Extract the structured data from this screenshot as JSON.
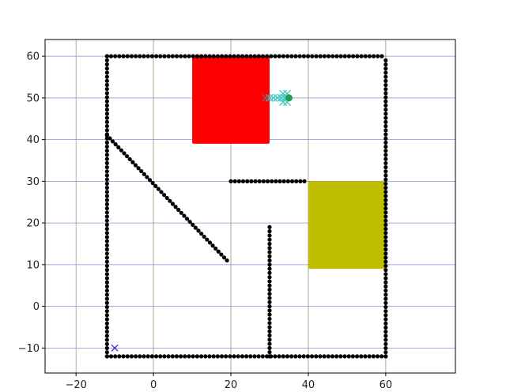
{
  "chart_data": {
    "type": "scatter",
    "title": "",
    "xlabel": "",
    "ylabel": "",
    "xlim": [
      -28,
      78
    ],
    "ylim": [
      -16,
      64
    ],
    "grid": true,
    "x_ticks": [
      -20,
      0,
      20,
      40,
      60
    ],
    "y_ticks": [
      -10,
      0,
      10,
      20,
      30,
      40,
      50,
      60
    ],
    "x_tick_labels": [
      "−20",
      "0",
      "20",
      "40",
      "60"
    ],
    "y_tick_labels": [
      "−10",
      "0",
      "10",
      "20",
      "30",
      "40",
      "50",
      "60"
    ],
    "colors": {
      "grid_x": "#9a9a70",
      "grid_y": "#8c8cd8",
      "walls": "#000000",
      "red_region": "#ff0000",
      "yellow_region": "#bfbf00",
      "start_marker": "#2b2bd6",
      "goal_marker": "#1f9e4a",
      "path_markers": "#3cc8c8",
      "end_marker": "#707070"
    },
    "regions": [
      {
        "color": "red",
        "x": [
          10,
          30
        ],
        "y": [
          39,
          60
        ]
      },
      {
        "color": "yellow",
        "x": [
          40,
          60
        ],
        "y": [
          9,
          30
        ]
      }
    ],
    "walls": [
      {
        "from": [
          -12,
          60
        ],
        "to": [
          59,
          60
        ]
      },
      {
        "from": [
          -12,
          -12
        ],
        "to": [
          60,
          -12
        ]
      },
      {
        "from": [
          -12,
          -12
        ],
        "to": [
          -12,
          60
        ]
      },
      {
        "from": [
          60,
          -12
        ],
        "to": [
          60,
          59
        ]
      },
      {
        "from": [
          -12,
          41
        ],
        "to": [
          19,
          11
        ]
      },
      {
        "from": [
          20,
          30
        ],
        "to": [
          39,
          30
        ]
      },
      {
        "from": [
          30,
          -12
        ],
        "to": [
          30,
          19
        ]
      }
    ],
    "start": {
      "x": -10,
      "y": -10,
      "marker": "x"
    },
    "goal": {
      "x": 35,
      "y": 50,
      "marker": "o"
    },
    "path_markers": [
      {
        "x": 30,
        "y": 50
      },
      {
        "x": 31,
        "y": 50
      },
      {
        "x": 32,
        "y": 50
      },
      {
        "x": 33,
        "y": 50
      },
      {
        "x": 33.5,
        "y": 51
      },
      {
        "x": 34,
        "y": 50
      },
      {
        "x": 34.5,
        "y": 51
      },
      {
        "x": 33.5,
        "y": 49
      },
      {
        "x": 34.5,
        "y": 49
      }
    ],
    "end_marker": {
      "x": 29,
      "y": 50,
      "marker": "x"
    }
  }
}
